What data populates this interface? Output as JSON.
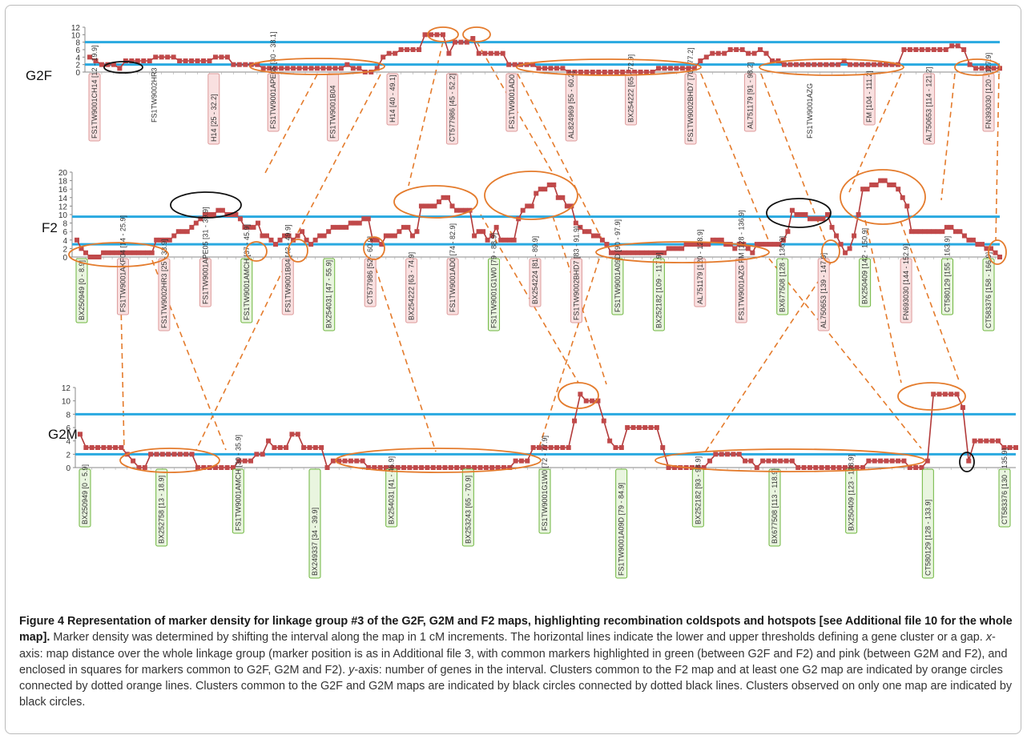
{
  "colors": {
    "series": "#b23a3a",
    "marker": "#c0494a",
    "threshold": "#29a9e0",
    "orange": "#e47b2c",
    "black_circle": "#111111",
    "green_fill": "#e9f5df",
    "green_stroke": "#6db53c",
    "pink_fill": "#f9e0e0",
    "pink_stroke": "#dd9a9a",
    "label_text": "#333333"
  },
  "chart_data": [
    {
      "type": "line",
      "title": "G2F",
      "ylim": [
        0,
        12
      ],
      "yticks": [
        0,
        2,
        4,
        6,
        8,
        10,
        12
      ],
      "thresholds": [
        2,
        8
      ],
      "values": [
        4,
        3,
        2,
        2,
        2,
        1,
        3,
        3,
        3,
        3,
        3,
        4,
        4,
        4,
        4,
        3,
        3,
        3,
        3,
        3,
        3,
        4,
        4,
        4,
        2,
        2,
        2,
        2,
        2,
        1,
        1,
        1,
        1,
        1,
        1,
        1,
        1,
        1,
        1,
        1,
        1,
        1,
        1,
        2,
        1,
        1,
        0,
        0,
        1,
        4,
        5,
        5,
        6,
        6,
        6,
        6,
        10,
        10,
        10,
        10,
        5,
        8,
        8,
        8,
        9,
        5,
        5,
        5,
        5,
        5,
        2,
        2,
        2,
        2,
        2,
        1,
        1,
        1,
        1,
        1,
        0,
        0,
        0,
        0,
        0,
        0,
        0,
        0,
        0,
        0,
        0,
        0,
        0,
        0,
        0,
        1,
        1,
        1,
        1,
        1,
        1,
        1,
        3,
        4,
        5,
        5,
        5,
        6,
        6,
        6,
        5,
        5,
        6,
        5,
        3,
        3,
        2,
        2,
        2,
        2,
        2,
        2,
        2,
        2,
        2,
        2,
        3,
        2,
        2,
        2,
        2,
        2,
        2,
        2,
        2,
        2,
        6,
        6,
        6,
        6,
        6,
        6,
        6,
        6,
        7,
        7,
        6,
        2,
        1,
        1,
        1,
        1,
        1
      ],
      "markers": [
        {
          "label": "FS1TW9001CH14 [12 - 19.9]",
          "color": "pink"
        },
        {
          "label": "FS1TW9002HR3",
          "color": "none"
        },
        {
          "label": "H14 [25 - 32.2]",
          "color": "pink"
        },
        {
          "label": "FS1TW9001APE05 [30 - 38.1]",
          "color": "pink"
        },
        {
          "label": "FS1TW9001B04",
          "color": "pink"
        },
        {
          "label": "H14 [40 - 49.1]",
          "color": "pink"
        },
        {
          "label": "CT577986 [45 - 52.2]",
          "color": "pink"
        },
        {
          "label": "FS1TW9001AD0",
          "color": "pink"
        },
        {
          "label": "AL824969 [55 - 60.2]",
          "color": "pink"
        },
        {
          "label": "BX254222 [65 - 72.9]",
          "color": "pink"
        },
        {
          "label": "FS1TW9002BHD7 [70 - 77.2]",
          "color": "pink"
        },
        {
          "label": "AL751179 [91 - 98.2]",
          "color": "pink"
        },
        {
          "label": "FS1TW9001AZG",
          "color": "none"
        },
        {
          "label": "FM [104 - 111.2]",
          "color": "pink"
        },
        {
          "label": "AL750653 [114 - 121.2]",
          "color": "pink"
        },
        {
          "label": "FN393030 [120 - 127.9]",
          "color": "pink"
        }
      ]
    },
    {
      "type": "line",
      "title": "F2",
      "ylim": [
        0,
        20
      ],
      "yticks": [
        0,
        2,
        4,
        6,
        8,
        10,
        12,
        14,
        16,
        18,
        20
      ],
      "thresholds": [
        3,
        9.5
      ],
      "values": [
        4,
        2,
        1,
        0,
        0,
        0,
        1,
        1,
        1,
        1,
        1,
        1,
        1,
        1,
        1,
        1,
        1,
        1,
        4,
        4,
        4,
        4,
        5,
        6,
        6,
        6,
        7,
        8,
        9,
        10,
        10,
        10,
        11,
        11,
        10,
        10,
        10,
        9,
        7,
        7,
        7,
        8,
        5,
        5,
        4,
        3,
        4,
        5,
        5,
        4,
        5,
        6,
        4,
        3,
        4,
        5,
        5,
        6,
        7,
        7,
        7,
        7,
        8,
        8,
        8,
        9,
        9,
        4,
        4,
        3,
        5,
        5,
        5,
        6,
        7,
        7,
        5,
        6,
        12,
        12,
        12,
        12,
        13,
        14,
        14,
        12,
        11,
        11,
        11,
        11,
        5,
        6,
        6,
        4,
        5,
        7,
        4,
        4,
        4,
        4,
        9,
        11,
        12,
        12,
        15,
        16,
        16,
        17,
        17,
        14,
        14,
        12,
        12,
        8,
        7,
        6,
        6,
        5,
        5,
        4,
        3,
        1,
        1,
        1,
        1,
        1,
        1,
        1,
        1,
        1,
        1,
        1,
        1,
        1,
        2,
        2,
        2,
        2,
        3,
        3,
        3,
        3,
        3,
        3,
        4,
        4,
        4,
        3,
        3,
        2,
        3,
        3,
        2,
        1,
        3,
        3,
        3,
        3,
        3,
        3,
        4,
        6,
        11,
        10,
        10,
        10,
        9,
        9,
        9,
        9,
        10,
        7,
        5,
        3,
        1,
        2,
        5,
        10,
        16,
        16,
        17,
        17,
        18,
        18,
        17,
        17,
        16,
        14,
        12,
        6,
        6,
        6,
        6,
        6,
        6,
        6,
        6,
        7,
        7,
        6,
        6,
        5,
        4,
        4,
        3,
        3,
        2,
        2,
        1,
        0
      ],
      "markers": [
        {
          "label": "BX250949 [0 - 8.9]",
          "color": "green"
        },
        {
          "label": "FS1TW9001AKF04 [14 - 25.9]",
          "color": "pink"
        },
        {
          "label": "FS1TW9002HR3 [25 - 33.9]",
          "color": "pink"
        },
        {
          "label": "FS1TW9001APE05 [31 - 39.9]",
          "color": "pink"
        },
        {
          "label": "FS1TW9001AMCH [37 - 45.9]",
          "color": "green"
        },
        {
          "label": "FS1TW9001B04 [43 - 49.9]",
          "color": "pink"
        },
        {
          "label": "BX254031 [47 - 55.9]",
          "color": "green"
        },
        {
          "label": "CT577986 [52 - 60.9]",
          "color": "pink"
        },
        {
          "label": "BX254222 [63 - 74.9]",
          "color": "pink"
        },
        {
          "label": "FS1TW9001AD0 [74 - 82.9]",
          "color": "pink"
        },
        {
          "label": "FS1TW9001G1W0 [79 - 88.9]",
          "color": "green"
        },
        {
          "label": "BX254224 [81 - 89.9]",
          "color": "pink"
        },
        {
          "label": "FS1TW9002BHD7 [83 - 91.9]",
          "color": "pink"
        },
        {
          "label": "FS1TW9001A09D [90 - 97.9]",
          "color": "green"
        },
        {
          "label": "BX252182 [109 - 117.9]",
          "color": "green"
        },
        {
          "label": "AL751179 [120 - 128.9]",
          "color": "pink"
        },
        {
          "label": "FS1TW9001AZG FM [128 - 136.9]",
          "color": "pink"
        },
        {
          "label": "BX677508 [128 - 136.9]",
          "color": "green"
        },
        {
          "label": "AL750653 [139 - 147.9]",
          "color": "pink"
        },
        {
          "label": "BX250409 [142 - 150.9]",
          "color": "green"
        },
        {
          "label": "FN693030 [144 - 152.9]",
          "color": "pink"
        },
        {
          "label": "CT580129 [155 - 163.9]",
          "color": "green"
        },
        {
          "label": "CT583376 [158 - 166.9]",
          "color": "green"
        }
      ]
    },
    {
      "type": "line",
      "title": "G2M",
      "ylim": [
        0,
        12
      ],
      "yticks": [
        0,
        2,
        4,
        6,
        8,
        10,
        12
      ],
      "thresholds": [
        2,
        8
      ],
      "values": [
        5,
        3,
        3,
        3,
        3,
        3,
        3,
        3,
        2,
        1,
        0,
        0,
        2,
        2,
        2,
        2,
        2,
        2,
        2,
        2,
        0,
        0,
        0,
        0,
        0,
        0,
        0,
        1,
        1,
        1,
        2,
        2,
        4,
        3,
        3,
        3,
        5,
        5,
        3,
        3,
        3,
        3,
        0,
        1,
        1,
        1,
        1,
        1,
        1,
        0,
        0,
        0,
        0,
        0,
        0,
        0,
        0,
        0,
        0,
        0,
        0,
        0,
        0,
        0,
        0,
        0,
        0,
        0,
        0,
        0,
        0,
        0,
        0,
        0,
        1,
        1,
        1,
        3,
        3,
        3,
        3,
        3,
        3,
        3,
        7,
        11,
        10,
        10,
        10,
        7,
        4,
        3,
        3,
        6,
        6,
        6,
        6,
        6,
        6,
        3,
        0,
        0,
        0,
        0,
        0,
        0,
        0,
        1,
        2,
        2,
        2,
        2,
        2,
        1,
        1,
        0,
        1,
        1,
        1,
        1,
        1,
        1,
        0,
        0,
        0,
        0,
        0,
        0,
        0,
        0,
        0,
        0,
        0,
        0,
        1,
        1,
        1,
        1,
        1,
        1,
        1,
        0,
        0,
        0,
        1,
        11,
        11,
        11,
        11,
        11,
        9,
        1,
        4,
        4,
        4,
        4,
        4,
        3,
        3,
        3
      ],
      "markers": [
        {
          "label": "BX250949 [0 - 5.9]",
          "color": "green"
        },
        {
          "label": "BX252758 [13 - 18.9]",
          "color": "green"
        },
        {
          "label": "FS1TW9001AMCH [30 - 35.9]",
          "color": "green"
        },
        {
          "label": "BX249337 [34 - 39.9]",
          "color": "green"
        },
        {
          "label": "BX254031 [41 - 46.9]",
          "color": "green"
        },
        {
          "label": "BX253243 [65 - 70.9]",
          "color": "green"
        },
        {
          "label": "FS1TW9001G1W0 [72 - 77.9]",
          "color": "green"
        },
        {
          "label": "FS1TW9001A09D [79 - 84.9]",
          "color": "green"
        },
        {
          "label": "BX252182 [93 - 98.9]",
          "color": "green"
        },
        {
          "label": "BX677508 [113 - 118.9]",
          "color": "green"
        },
        {
          "label": "BX250409 [123 - 128.9]",
          "color": "green"
        },
        {
          "label": "CT580129 [128 - 133.9]",
          "color": "green"
        },
        {
          "label": "CT583376 [130 - 135.9]",
          "color": "green"
        }
      ]
    }
  ],
  "caption": {
    "title": "Figure 4 Representation of marker density for linkage group #3 of the G2F, G2M and F2 maps, highlighting recombination coldspots and hotspots [see Additional file 10 for the whole map].",
    "text1": " Marker density was determined by shifting the interval along the map in 1 cM increments. The horizontal lines indicate the lower and upper thresholds defining a gene cluster or a gap. ",
    "x_label": "x",
    "text2": "-axis: map distance over the whole linkage group (marker position is as in Additional file 3, with common markers highlighted in green (between G2F and F2) and pink (between G2M and F2), and enclosed in squares for markers common to G2F, G2M and F2). ",
    "y_label": "y",
    "text3": "-axis: number of genes in the interval. Clusters common to the F2 map and at least one G2 map are indicated by orange circles connected by dotted orange lines. Clusters common to the G2F and G2M maps are indicated by black circles connected by dotted black lines. Clusters observed on only one map are indicated by black circles."
  }
}
